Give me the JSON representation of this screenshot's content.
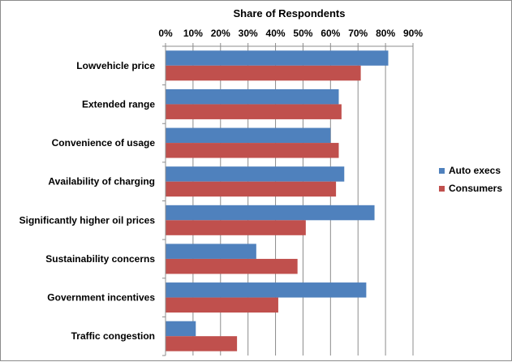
{
  "chart_data": {
    "type": "bar",
    "orientation": "horizontal",
    "title": "",
    "xlabel": "Share of Respondents",
    "ylabel": "",
    "xlim": [
      0,
      0.9
    ],
    "x_ticks": [
      "0%",
      "10%",
      "20%",
      "30%",
      "40%",
      "50%",
      "60%",
      "70%",
      "80%",
      "90%"
    ],
    "x_axis_position": "top",
    "grid": true,
    "legend_position": "right",
    "categories": [
      "Lowvehicle price",
      "Extended range",
      "Convenience of usage",
      "Availability of charging",
      "Significantly higher oil prices",
      "Sustainability concerns",
      "Government incentives",
      "Traffic congestion"
    ],
    "series": [
      {
        "name": "Auto execs",
        "color": "#4F81BD",
        "values": [
          0.81,
          0.63,
          0.6,
          0.65,
          0.76,
          0.33,
          0.73,
          0.11
        ]
      },
      {
        "name": "Consumers",
        "color": "#C0504D",
        "values": [
          0.71,
          0.64,
          0.63,
          0.62,
          0.51,
          0.48,
          0.41,
          0.26
        ]
      }
    ]
  }
}
